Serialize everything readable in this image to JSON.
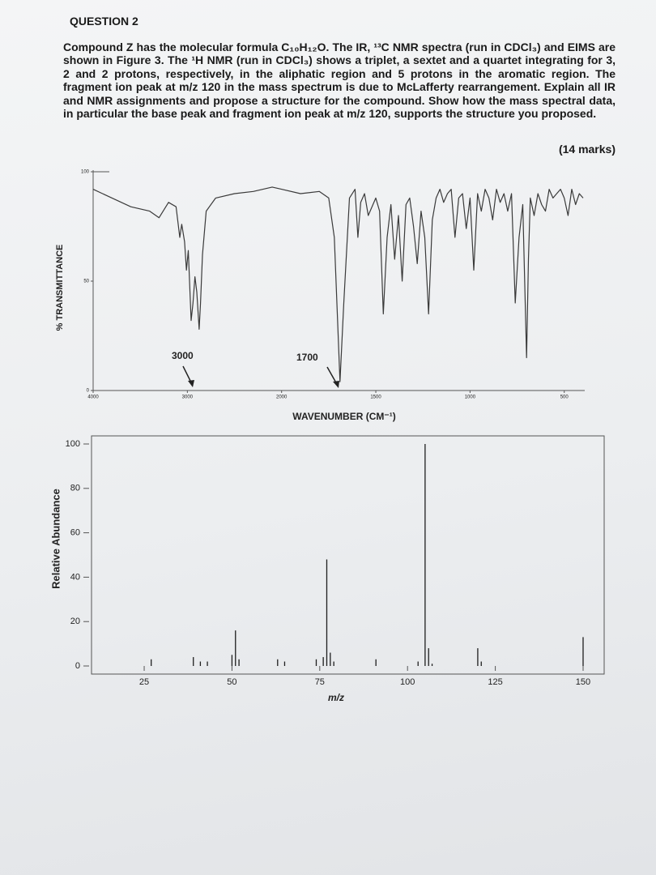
{
  "question": "QUESTION 2",
  "paragraph": "Compound Z has the molecular formula C₁₀H₁₂O. The IR, ¹³C NMR spectra (run in CDCl₃) and EIMS are shown in Figure 3. The ¹H NMR (run in CDCl₃) shows a triplet, a sextet and a quartet integrating for 3, 2 and 2 protons, respectively, in the aliphatic region and 5 protons in the aromatic region. The fragment ion peak at m/z 120 in the mass spectrum is due to McLafferty rearrangement. Explain all IR and NMR assignments and propose a structure for the compound. Show how the mass spectral data, in particular the base peak and fragment ion peak at m/z 120, supports the structure you proposed.",
  "marks": "(14 marks)",
  "chart_data": [
    {
      "type": "line",
      "ylabel": "% TRANSMITTANCE",
      "xlabel": "WAVENUMBER (CM⁻¹)",
      "color": "#3a3a3a",
      "annotations": [
        "3000",
        "1700"
      ],
      "x": [
        4000,
        3900,
        3800,
        3600,
        3400,
        3300,
        3200,
        3120,
        3080,
        3060,
        3030,
        3010,
        2990,
        2960,
        2940,
        2920,
        2900,
        2875,
        2860,
        2840,
        2800,
        2700,
        2500,
        2300,
        2100,
        2000,
        1900,
        1800,
        1750,
        1720,
        1690,
        1670,
        1640,
        1610,
        1595,
        1580,
        1560,
        1540,
        1500,
        1480,
        1460,
        1440,
        1420,
        1400,
        1380,
        1360,
        1340,
        1320,
        1300,
        1280,
        1260,
        1240,
        1220,
        1200,
        1180,
        1160,
        1140,
        1120,
        1100,
        1080,
        1060,
        1040,
        1020,
        1000,
        980,
        960,
        940,
        920,
        900,
        880,
        860,
        840,
        820,
        800,
        780,
        760,
        740,
        720,
        700,
        690,
        680,
        660,
        640,
        620,
        600,
        580,
        560,
        540,
        520,
        500,
        480,
        460,
        440,
        420,
        400
      ],
      "values": [
        92,
        90,
        88,
        84,
        82,
        79,
        86,
        84,
        70,
        76,
        68,
        55,
        64,
        32,
        40,
        52,
        45,
        28,
        40,
        62,
        82,
        88,
        90,
        91,
        93,
        92,
        90,
        91,
        88,
        70,
        4,
        40,
        88,
        92,
        70,
        86,
        90,
        80,
        88,
        82,
        35,
        70,
        85,
        60,
        80,
        50,
        85,
        88,
        75,
        58,
        82,
        70,
        35,
        78,
        88,
        92,
        86,
        90,
        92,
        70,
        88,
        90,
        74,
        88,
        55,
        90,
        82,
        92,
        88,
        78,
        92,
        86,
        90,
        82,
        90,
        40,
        70,
        85,
        15,
        60,
        88,
        80,
        90,
        85,
        82,
        92,
        88,
        90,
        92,
        88,
        80,
        92,
        85,
        90,
        88
      ],
      "xlim": [
        4000,
        400
      ],
      "ylim": [
        0,
        100
      ],
      "xticks": [
        4000,
        3000,
        2000,
        1500,
        1000,
        500
      ],
      "yticks": [
        0,
        50,
        100
      ]
    },
    {
      "type": "bar",
      "ylabel": "Relative Abundance",
      "xlabel": "m/z",
      "color": "#1e1e1e",
      "x": [
        27,
        39,
        41,
        43,
        50,
        51,
        52,
        63,
        65,
        74,
        76,
        77,
        78,
        79,
        91,
        103,
        105,
        106,
        107,
        120,
        121,
        150
      ],
      "values": [
        3,
        4,
        2,
        2,
        5,
        16,
        3,
        3,
        2,
        3,
        4,
        48,
        6,
        2,
        3,
        2,
        100,
        8,
        1,
        8,
        2,
        13
      ],
      "xlim": [
        10,
        156
      ],
      "ylim": [
        0,
        100
      ],
      "xticks": [
        25,
        50,
        75,
        100,
        125,
        150
      ],
      "yticks": [
        0,
        20,
        40,
        60,
        80,
        100
      ]
    }
  ]
}
